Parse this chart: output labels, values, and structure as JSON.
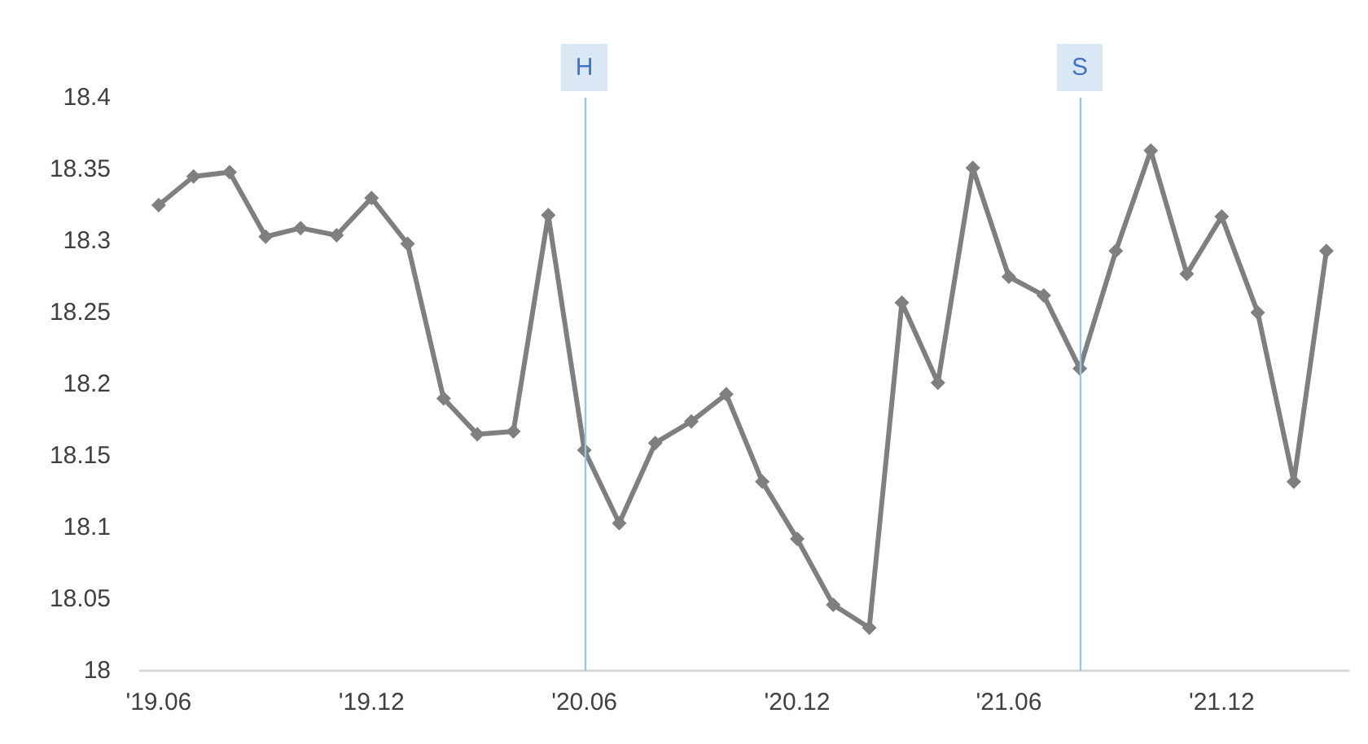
{
  "chart_data": {
    "type": "line",
    "x": [
      "2019-06",
      "2019-07",
      "2019-08",
      "2019-09",
      "2019-10",
      "2019-11",
      "2019-12",
      "2020-01",
      "2020-02",
      "2020-03",
      "2020-04",
      "2020-05",
      "2020-06",
      "2020-07",
      "2020-08",
      "2020-09",
      "2020-10",
      "2020-11",
      "2020-12",
      "2021-01",
      "2021-02",
      "2021-03",
      "2021-04",
      "2021-05",
      "2021-06",
      "2021-07",
      "2021-08",
      "2021-09",
      "2021-10",
      "2021-11",
      "2021-12",
      "2022-01",
      "2022-02",
      "2022-03"
    ],
    "series": [
      {
        "color": "#7f7f7f",
        "values": [
          18.325,
          18.345,
          18.348,
          18.303,
          18.309,
          18.304,
          18.33,
          18.298,
          18.19,
          18.165,
          18.167,
          18.318,
          18.154,
          18.103,
          18.159,
          18.174,
          18.193,
          18.132,
          18.092,
          18.046,
          18.03,
          18.257,
          18.201,
          18.351,
          18.275,
          18.262,
          18.211,
          18.293,
          18.363,
          18.277,
          18.317,
          18.25,
          18.132,
          18.293
        ]
      }
    ],
    "xlim": [
      "2019-05-16",
      "2022-03-20"
    ],
    "xticks": [
      {
        "value": "2019-06",
        "label": "'19.06"
      },
      {
        "value": "2019-12",
        "label": "'19.12"
      },
      {
        "value": "2020-06",
        "label": "'20.06"
      },
      {
        "value": "2020-12",
        "label": "'20.12"
      },
      {
        "value": "2021-06",
        "label": "'21.06"
      },
      {
        "value": "2021-12",
        "label": "'21.12"
      }
    ],
    "ylim": [
      18,
      18.4
    ],
    "yticks": [
      18,
      18.05,
      18.1,
      18.15,
      18.2,
      18.25,
      18.3,
      18.35,
      18.4
    ],
    "ref_lines": [
      {
        "axis": "x",
        "value": "2020-06",
        "label": "H",
        "color": "#9dc3e6"
      },
      {
        "axis": "x",
        "value": "2021-08",
        "label": "S",
        "color": "#9dc3e6"
      }
    ],
    "grid": false,
    "marker": "diamond",
    "line_style": "solid"
  }
}
